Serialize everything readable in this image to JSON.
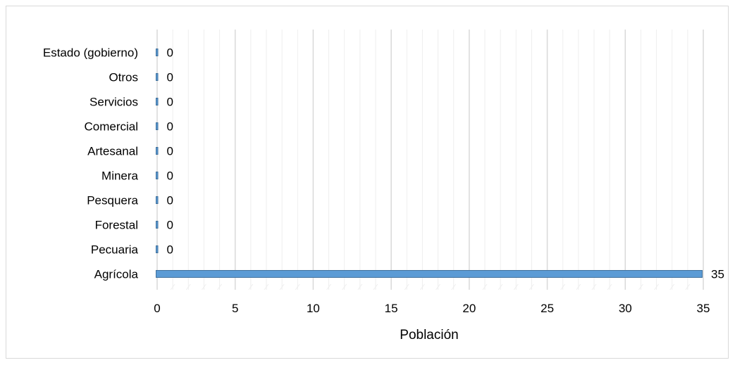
{
  "chart_data": {
    "type": "bar",
    "orientation": "horizontal",
    "categories": [
      "Estado (gobierno)",
      "Otros",
      "Servicios",
      "Comercial",
      "Artesanal",
      "Minera",
      "Pesquera",
      "Forestal",
      "Pecuaria",
      "Agrícola"
    ],
    "values": [
      0,
      0,
      0,
      0,
      0,
      0,
      0,
      0,
      0,
      35
    ],
    "data_labels": [
      "0",
      "0",
      "0",
      "0",
      "0",
      "0",
      "0",
      "0",
      "0",
      "35"
    ],
    "xlabel": "Población",
    "ylabel": "",
    "xlim": [
      0,
      35
    ],
    "x_ticks": [
      0,
      5,
      10,
      15,
      20,
      25,
      30,
      35
    ],
    "x_tick_labels": [
      "0",
      "5",
      "10",
      "15",
      "20",
      "25",
      "30",
      "35"
    ],
    "minor_grid_step": 1,
    "grid": true,
    "legend": "none",
    "bar_color": "#5b9bd5",
    "bar_edge_color": "#41719c",
    "major_grid_color": "#d9d9d9",
    "minor_grid_color": "#eeeeee"
  }
}
